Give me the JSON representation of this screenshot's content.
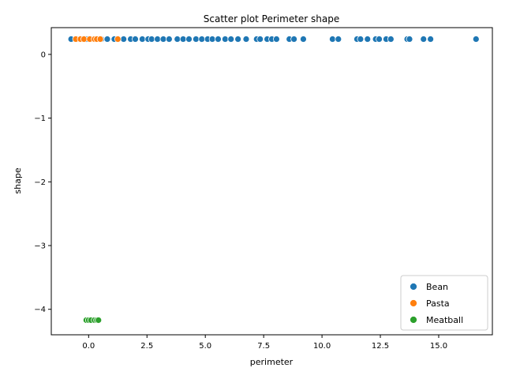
{
  "chart_data": {
    "type": "scatter",
    "title": "Scatter plot Perimeter shape",
    "xlabel": "perimeter",
    "ylabel": "shape",
    "xlim": [
      -1.6,
      17.3
    ],
    "ylim": [
      -4.4,
      0.42
    ],
    "xticks": [
      0.0,
      2.5,
      5.0,
      7.5,
      10.0,
      12.5,
      15.0
    ],
    "xtick_labels": [
      "0.0",
      "2.5",
      "5.0",
      "7.5",
      "10.0",
      "12.5",
      "15.0"
    ],
    "yticks": [
      0,
      -1,
      -2,
      -3,
      -4
    ],
    "ytick_labels": [
      "0",
      "−1",
      "−2",
      "−3",
      "−4"
    ],
    "grid": false,
    "legend_position": "bottom-right",
    "series": [
      {
        "name": "Bean",
        "color": "#1f77b4",
        "points": [
          [
            -0.75,
            0.24
          ],
          [
            -0.4,
            0.24
          ],
          [
            -0.1,
            0.24
          ],
          [
            0.2,
            0.24
          ],
          [
            0.55,
            0.24
          ],
          [
            0.8,
            0.24
          ],
          [
            1.1,
            0.24
          ],
          [
            1.5,
            0.24
          ],
          [
            1.8,
            0.24
          ],
          [
            2.0,
            0.24
          ],
          [
            2.3,
            0.24
          ],
          [
            2.55,
            0.24
          ],
          [
            2.7,
            0.24
          ],
          [
            2.95,
            0.24
          ],
          [
            3.2,
            0.24
          ],
          [
            3.45,
            0.24
          ],
          [
            3.8,
            0.24
          ],
          [
            4.05,
            0.24
          ],
          [
            4.3,
            0.24
          ],
          [
            4.6,
            0.24
          ],
          [
            4.85,
            0.24
          ],
          [
            5.1,
            0.24
          ],
          [
            5.3,
            0.24
          ],
          [
            5.55,
            0.24
          ],
          [
            5.85,
            0.24
          ],
          [
            6.1,
            0.24
          ],
          [
            6.4,
            0.24
          ],
          [
            6.75,
            0.24
          ],
          [
            7.2,
            0.24
          ],
          [
            7.35,
            0.24
          ],
          [
            7.65,
            0.24
          ],
          [
            7.85,
            0.24
          ],
          [
            8.05,
            0.24
          ],
          [
            8.6,
            0.24
          ],
          [
            8.8,
            0.24
          ],
          [
            9.2,
            0.24
          ],
          [
            10.45,
            0.24
          ],
          [
            10.7,
            0.24
          ],
          [
            11.5,
            0.24
          ],
          [
            11.65,
            0.24
          ],
          [
            11.95,
            0.24
          ],
          [
            12.3,
            0.24
          ],
          [
            12.45,
            0.24
          ],
          [
            12.75,
            0.24
          ],
          [
            12.95,
            0.24
          ],
          [
            13.65,
            0.24
          ],
          [
            13.75,
            0.24
          ],
          [
            14.35,
            0.24
          ],
          [
            14.65,
            0.24
          ],
          [
            16.6,
            0.24
          ]
        ]
      },
      {
        "name": "Pasta",
        "color": "#ff7f0e",
        "points": [
          [
            -0.55,
            0.24
          ],
          [
            -0.35,
            0.24
          ],
          [
            -0.2,
            0.24
          ],
          [
            0.05,
            0.24
          ],
          [
            0.25,
            0.24
          ],
          [
            0.35,
            0.24
          ],
          [
            0.5,
            0.24
          ],
          [
            1.25,
            0.24
          ]
        ]
      },
      {
        "name": "Meatball",
        "color": "#2ca02c",
        "points": [
          [
            -0.1,
            -4.17
          ],
          [
            0.0,
            -4.17
          ],
          [
            0.1,
            -4.17
          ],
          [
            0.25,
            -4.17
          ],
          [
            0.35,
            -4.17
          ],
          [
            0.42,
            -4.17
          ]
        ]
      }
    ]
  }
}
